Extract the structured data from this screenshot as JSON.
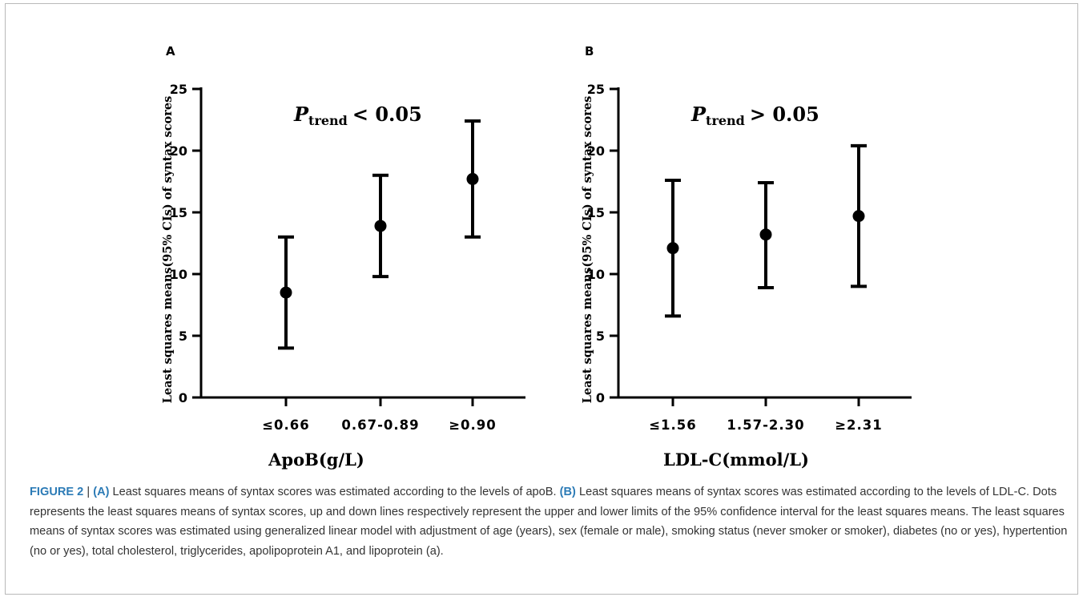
{
  "chart_data": [
    {
      "type": "scatter",
      "panel": "A",
      "annotation_main": "P",
      "annotation_sub": "trend",
      "annotation_rest": "< 0.05",
      "xlabel": "ApoB(g/L)",
      "ylabel": "Least squares means(95% CIs) of syntax scores",
      "ylim": [
        0,
        25
      ],
      "yticks": [
        "0",
        "5",
        "10",
        "15",
        "20",
        "25"
      ],
      "categories": [
        "≤0.66",
        "0.67-0.89",
        "≥0.90"
      ],
      "values": [
        8.5,
        13.9,
        17.7
      ],
      "lower": [
        4.0,
        9.8,
        13.0
      ],
      "upper": [
        13.0,
        18.0,
        22.4
      ]
    },
    {
      "type": "scatter",
      "panel": "B",
      "annotation_main": "P",
      "annotation_sub": "trend",
      "annotation_rest": "> 0.05",
      "xlabel": "LDL-C(mmol/L)",
      "ylabel": "Least squares means(95% CIs) of syntax scores",
      "ylim": [
        0,
        25
      ],
      "yticks": [
        "0",
        "5",
        "10",
        "15",
        "20",
        "25"
      ],
      "categories": [
        "≤1.56",
        "1.57-2.30",
        "≥2.31"
      ],
      "values": [
        12.1,
        13.2,
        14.7
      ],
      "lower": [
        6.6,
        8.9,
        9.0
      ],
      "upper": [
        17.6,
        17.4,
        20.4
      ]
    }
  ],
  "caption": {
    "figure_label": "FIGURE 2",
    "separator": " | ",
    "a_label": "(A)",
    "a_text": " Least squares means of syntax scores was estimated according to the levels of apoB. ",
    "b_label": "(B)",
    "b_text": " Least squares means of syntax scores was estimated according to the levels of LDL-C. Dots represents the least squares means of syntax scores, up and down lines respectively represent the upper and lower limits of the 95% confidence interval for the least squares means. The least squares means of syntax scores was estimated using generalized linear model with adjustment of age (years), sex (female or male), smoking status (never smoker or smoker), diabetes (no or yes), hypertention (no or yes), total cholesterol, triglycerides, apolipoprotein A1, and lipoprotein (a)."
  }
}
